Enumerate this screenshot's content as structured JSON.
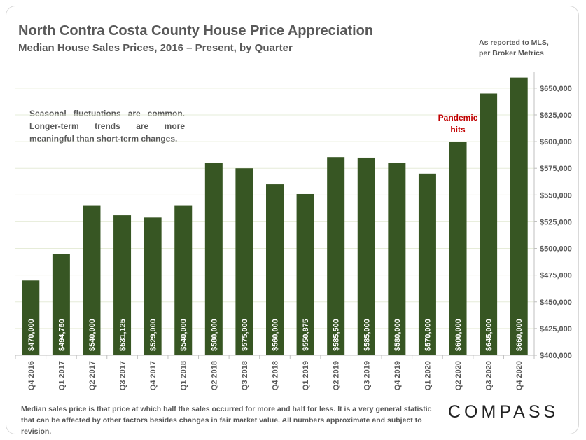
{
  "header": {
    "title": "North Contra Costa County House Price Appreciation",
    "subtitle": "Median House Sales Prices, 2016 – Present, by Quarter",
    "source_line1": "As reported to MLS,",
    "source_line2": "per Broker Metrics"
  },
  "note": "Seasonal fluctuations are common. Longer-term trends are more meaningful than short-term changes.",
  "footnote": "Median sales price is that price at which half the sales occurred for more and half for less. It is a very general statistic that can be affected by other factors besides changes in fair market value. All numbers approximate and subject to revision.",
  "logo": "COMPASS",
  "colors": {
    "bar": "#375623",
    "annotation": "#c00000",
    "text": "#595959",
    "grid": "#e6ecd8"
  },
  "chart_data": {
    "type": "bar",
    "categories": [
      "Q4 2016",
      "Q1 2017",
      "Q2 2017",
      "Q3 2017",
      "Q4 2017",
      "Q1 2018",
      "Q2 2018",
      "Q3 2018",
      "Q4 2018",
      "Q1 2019",
      "Q2 2019",
      "Q3 2019",
      "Q4 2019",
      "Q1 2020",
      "Q2 2020",
      "Q3 2020",
      "Q4 2020"
    ],
    "values": [
      470000,
      494750,
      540000,
      531125,
      529000,
      540000,
      580000,
      575000,
      560000,
      550875,
      585500,
      585000,
      580000,
      570000,
      600000,
      645000,
      660000
    ],
    "data_labels": [
      "$470,000",
      "$494,750",
      "$540,000",
      "$531,125",
      "$529,000",
      "$540,000",
      "$580,000",
      "$575,000",
      "$560,000",
      "$550,875",
      "$585,500",
      "$585,000",
      "$580,000",
      "$570,000",
      "$600,000",
      "$645,000",
      "$660,000"
    ],
    "ylim": [
      400000,
      665000
    ],
    "yticks": [
      400000,
      425000,
      450000,
      475000,
      500000,
      525000,
      550000,
      575000,
      600000,
      625000,
      650000
    ],
    "ytick_labels": [
      "$400,000",
      "$425,000",
      "$450,000",
      "$475,000",
      "$500,000",
      "$525,000",
      "$550,000",
      "$575,000",
      "$600,000",
      "$625,000",
      "$650,000"
    ],
    "y_axis_side": "right",
    "grid": true,
    "annotation": {
      "category": "Q2 2020",
      "line1": "Pandemic",
      "line2": "hits"
    }
  }
}
